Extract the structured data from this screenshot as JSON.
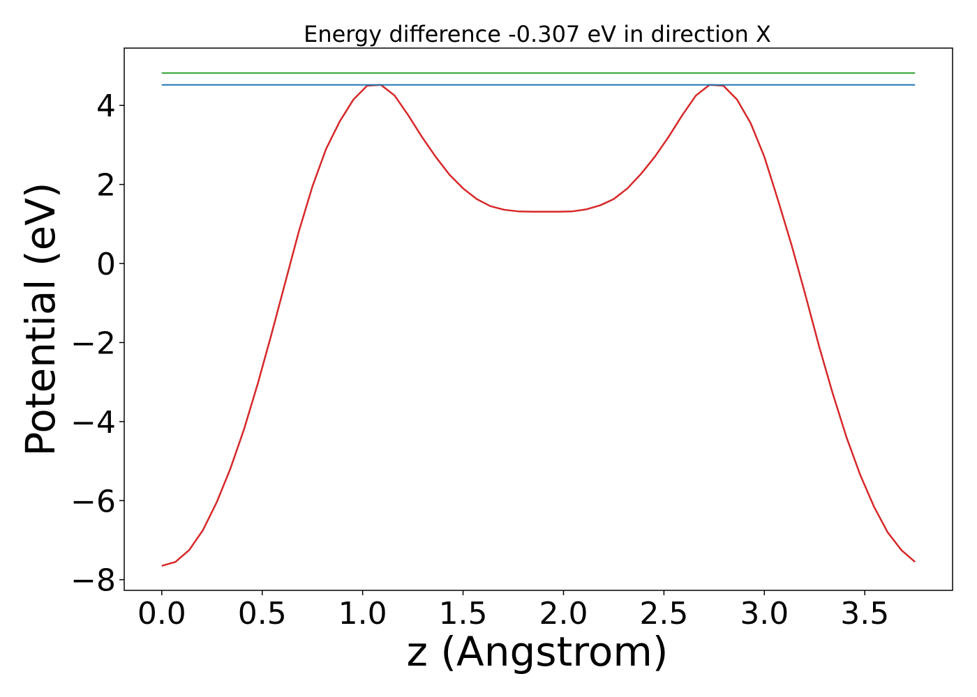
{
  "chart_data": {
    "type": "line",
    "title": "Energy difference -0.307 eV in direction X",
    "xlabel": "z (Angstrom)",
    "ylabel": "Potential (eV)",
    "xlim": [
      -0.187,
      3.937
    ],
    "ylim": [
      -8.27,
      5.45
    ],
    "grid": false,
    "xticks": [
      {
        "value": 0.0,
        "label": "0.0"
      },
      {
        "value": 0.5,
        "label": "0.5"
      },
      {
        "value": 1.0,
        "label": "1.0"
      },
      {
        "value": 1.5,
        "label": "1.5"
      },
      {
        "value": 2.0,
        "label": "2.0"
      },
      {
        "value": 2.5,
        "label": "2.5"
      },
      {
        "value": 3.0,
        "label": "3.0"
      },
      {
        "value": 3.5,
        "label": "3.5"
      }
    ],
    "yticks": [
      {
        "value": -8,
        "label": "−8"
      },
      {
        "value": -6,
        "label": "−6"
      },
      {
        "value": -4,
        "label": "−4"
      },
      {
        "value": -2,
        "label": "−2"
      },
      {
        "value": 0,
        "label": "0"
      },
      {
        "value": 2,
        "label": "2"
      },
      {
        "value": 4,
        "label": "4"
      }
    ],
    "series": [
      {
        "color": "#d62728",
        "x": [
          0.0,
          0.0682,
          0.1364,
          0.2045,
          0.2727,
          0.3409,
          0.4091,
          0.4773,
          0.5455,
          0.6136,
          0.6818,
          0.75,
          0.8182,
          0.8864,
          0.9545,
          1.0227,
          1.0909,
          1.1591,
          1.2273,
          1.2955,
          1.3636,
          1.4318,
          1.5,
          1.5682,
          1.6364,
          1.7045,
          1.7727,
          1.8409,
          1.9091,
          1.9773,
          2.0455,
          2.1136,
          2.1818,
          2.25,
          2.3182,
          2.3864,
          2.4545,
          2.5227,
          2.5909,
          2.6591,
          2.7273,
          2.7955,
          2.8636,
          2.9318,
          3.0,
          3.0682,
          3.1364,
          3.2045,
          3.2727,
          3.3409,
          3.4091,
          3.4773,
          3.5455,
          3.6136,
          3.6818,
          3.75
        ],
        "y": [
          -7.65,
          -7.55,
          -7.25,
          -6.75,
          -6.05,
          -5.2,
          -4.2,
          -3.05,
          -1.8,
          -0.5,
          0.8,
          1.95,
          2.9,
          3.6,
          4.15,
          4.5,
          4.52,
          4.25,
          3.75,
          3.2,
          2.7,
          2.25,
          1.9,
          1.63,
          1.45,
          1.36,
          1.32,
          1.31,
          1.31,
          1.31,
          1.32,
          1.37,
          1.47,
          1.63,
          1.9,
          2.27,
          2.7,
          3.2,
          3.75,
          4.25,
          4.52,
          4.5,
          4.15,
          3.55,
          2.7,
          1.6,
          0.45,
          -0.8,
          -2.1,
          -3.3,
          -4.4,
          -5.35,
          -6.15,
          -6.8,
          -7.25,
          -7.55
        ]
      },
      {
        "color": "#1f77b4",
        "x": [
          0.0,
          3.75
        ],
        "y": [
          4.52,
          4.52
        ]
      },
      {
        "color": "#2ca02c",
        "x": [
          0.0,
          3.75
        ],
        "y": [
          4.82,
          4.82
        ]
      }
    ]
  }
}
